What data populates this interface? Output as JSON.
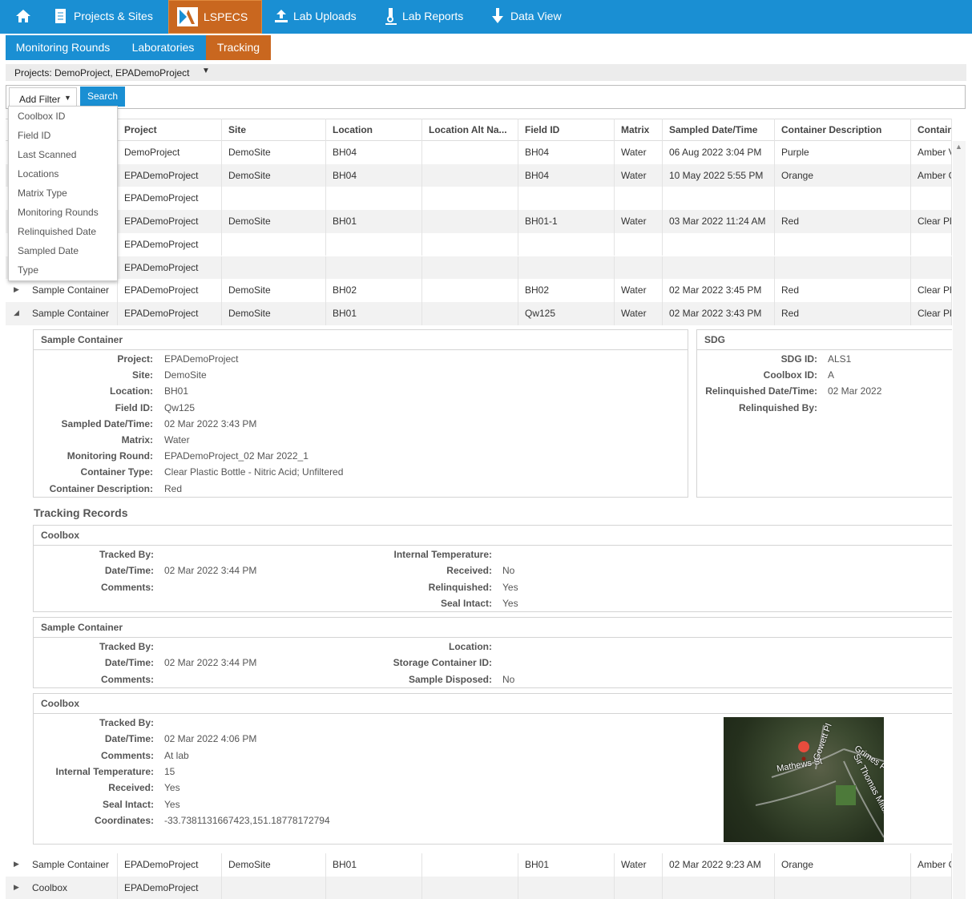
{
  "nav": {
    "items": [
      "Projects & Sites",
      "LSPECS",
      "Lab Uploads",
      "Lab Reports",
      "Data View"
    ]
  },
  "subnav": {
    "items": [
      "Monitoring Rounds",
      "Laboratories",
      "Tracking"
    ]
  },
  "project_selector": "Projects: DemoProject, EPADemoProject",
  "filter": {
    "add_filter": "Add Filter",
    "search": "Search",
    "options": [
      "Coolbox ID",
      "Field ID",
      "Last Scanned",
      "Locations",
      "Matrix Type",
      "Monitoring Rounds",
      "Relinquished Date",
      "Sampled Date",
      "Type"
    ]
  },
  "table": {
    "columns": [
      "Project",
      "Site",
      "Location",
      "Location Alt Na...",
      "Field ID",
      "Matrix",
      "Sampled Date/Time",
      "Container Description",
      "Contain"
    ],
    "rows": [
      [
        null,
        "DemoProject",
        "DemoSite",
        "BH04",
        null,
        "BH04",
        "Water",
        "06 Aug 2022 3:04 PM",
        "Purple",
        "Amber V"
      ],
      [
        null,
        "EPADemoProject",
        "DemoSite",
        "BH04",
        null,
        "BH04",
        "Water",
        "10 May 2022 5:55 PM",
        "Orange",
        "Amber G"
      ],
      [
        null,
        "EPADemoProject",
        null,
        null,
        null,
        null,
        null,
        null,
        null,
        null
      ],
      [
        null,
        "EPADemoProject",
        "DemoSite",
        "BH01",
        null,
        "BH01-1",
        "Water",
        "03 Mar 2022 11:24 AM",
        "Red",
        "Clear Pl"
      ],
      [
        null,
        "EPADemoProject",
        null,
        null,
        null,
        null,
        null,
        null,
        null,
        null
      ],
      [
        null,
        "EPADemoProject",
        null,
        null,
        null,
        null,
        null,
        null,
        null,
        null
      ],
      [
        "Sample Container",
        "EPADemoProject",
        "DemoSite",
        "BH02",
        null,
        "BH02",
        "Water",
        "02 Mar 2022 3:45 PM",
        "Red",
        "Clear Pl"
      ],
      [
        "Sample Container",
        "EPADemoProject",
        "DemoSite",
        "BH01",
        null,
        "Qw125",
        "Water",
        "02 Mar 2022 3:43 PM",
        "Red",
        "Clear Pl"
      ],
      [
        "Sample Container",
        "EPADemoProject",
        "DemoSite",
        "BH01",
        null,
        "BH01",
        "Water",
        "02 Mar 2022 9:23 AM",
        "Orange",
        "Amber G"
      ],
      [
        "Coolbox",
        "EPADemoProject",
        null,
        null,
        null,
        null,
        null,
        null,
        null,
        null
      ]
    ]
  },
  "detail": {
    "sample_container": {
      "title": "Sample Container",
      "fields": [
        [
          "Project:",
          "EPADemoProject"
        ],
        [
          "Site:",
          "DemoSite"
        ],
        [
          "Location:",
          "BH01"
        ],
        [
          "Field ID:",
          "Qw125"
        ],
        [
          "Sampled Date/Time:",
          "02 Mar 2022 3:43 PM"
        ],
        [
          "Matrix:",
          "Water"
        ],
        [
          "Monitoring Round:",
          "EPADemoProject_02 Mar 2022_1"
        ],
        [
          "Container Type:",
          "Clear Plastic Bottle - Nitric Acid; Unfiltered"
        ],
        [
          "Container Description:",
          "Red"
        ]
      ]
    },
    "sdg": {
      "title": "SDG",
      "fields": [
        [
          "SDG ID:",
          "ALS1"
        ],
        [
          "Coolbox ID:",
          "A"
        ],
        [
          "Relinquished Date/Time:",
          "02 Mar 2022"
        ],
        [
          "Relinquished By:",
          null
        ]
      ]
    },
    "tracking_title": "Tracking Records",
    "records": [
      {
        "title": "Coolbox",
        "left": [
          [
            "Tracked By:",
            null
          ],
          [
            "Date/Time:",
            "02 Mar 2022 3:44 PM"
          ],
          [
            "Comments:",
            null
          ]
        ],
        "right": [
          [
            "Internal Temperature:",
            null
          ],
          [
            "Received:",
            "No"
          ],
          [
            "Relinquished:",
            "Yes"
          ],
          [
            "Seal Intact:",
            "Yes"
          ]
        ]
      },
      {
        "title": "Sample Container",
        "left": [
          [
            "Tracked By:",
            null
          ],
          [
            "Date/Time:",
            "02 Mar 2022 3:44 PM"
          ],
          [
            "Comments:",
            null
          ]
        ],
        "right": [
          [
            "Location:",
            null
          ],
          [
            "Storage Container ID:",
            null
          ],
          [
            "Sample Disposed:",
            "No"
          ]
        ]
      },
      {
        "title": "Coolbox",
        "left": [
          [
            "Tracked By:",
            null
          ],
          [
            "Date/Time:",
            "02 Mar 2022 4:06 PM"
          ],
          [
            "Comments:",
            "At lab"
          ],
          [
            "Internal Temperature:",
            "15"
          ],
          [
            "Received:",
            "Yes"
          ],
          [
            "Seal Intact:",
            "Yes"
          ],
          [
            "Coordinates:",
            "-33.7381131667423,151.18778172794"
          ]
        ],
        "right": [],
        "map_labels": [
          "Mathews St",
          "Gowett Pl",
          "Grimes Pl",
          "Sir Thomas Mitchell Dr"
        ]
      }
    ]
  }
}
